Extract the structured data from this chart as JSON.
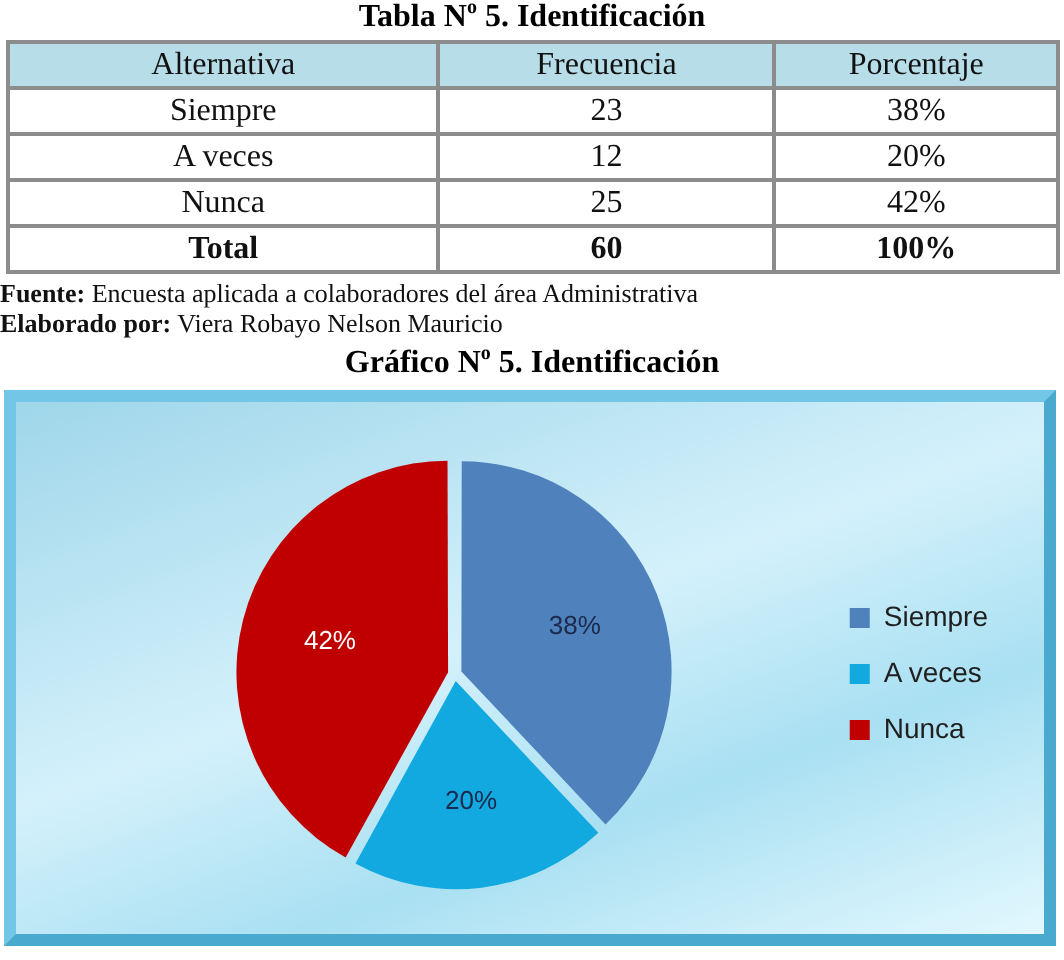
{
  "chart_data": [
    {
      "type": "other",
      "title": "Tabla N$^{o}$ 5. Identificación",
      "xlabel": "Alternativa",
      "categories": [
        "Siempre",
        "A veces",
        "Nunca",
        "Total"
      ],
      "series": [
        {
          "name": "Frecuencia",
          "values": [
            23,
            12,
            25,
            60
          ]
        },
        {
          "name": "Porcentaje",
          "values": [
            38,
            20,
            42,
            100
          ],
          "value_labels": [
            "38%",
            "20%",
            "42%",
            "100%"
          ]
        }
      ],
      "data_labels": true,
      "annotations": [
        "Fuente: Encuesta aplicada a colaboradores del área Administrativa",
        "Elaborado por: Viera Robayo Nelson Mauricio"
      ]
    },
    {
      "type": "pie",
      "title": "Gráfico N$^{o}$ 5.  Identificación",
      "categories": [
        "Siempre",
        "A veces",
        "Nunca"
      ],
      "values": [
        38,
        20,
        42
      ],
      "colors": [
        "#4f81bd",
        "#12a8e0",
        "#c00000"
      ],
      "value_labels": [
        "38%",
        "20%",
        "42%"
      ],
      "legend": "right"
    }
  ]
}
